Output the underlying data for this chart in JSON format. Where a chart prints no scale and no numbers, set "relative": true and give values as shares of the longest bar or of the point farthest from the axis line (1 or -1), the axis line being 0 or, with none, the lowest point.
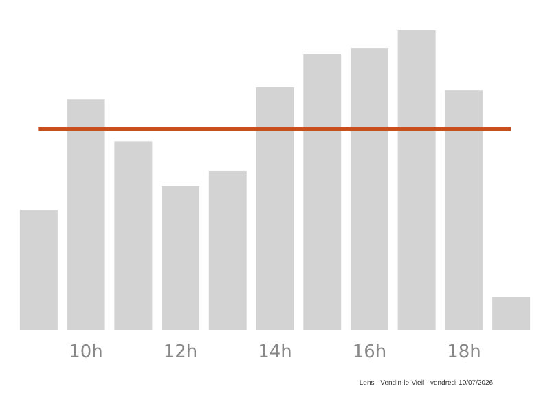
{
  "chart_data": {
    "type": "bar",
    "relative": true,
    "categories": [
      null,
      "10h",
      null,
      "12h",
      null,
      "14h",
      null,
      "16h",
      null,
      "18h",
      null
    ],
    "values": [
      0.4,
      0.77,
      0.63,
      0.48,
      0.53,
      0.81,
      0.92,
      0.94,
      1,
      0.8,
      0.11
    ],
    "color": "#d3d3d3",
    "ref_lines": [
      {
        "axis": "y",
        "value": 0.67,
        "color": "#c8501e"
      }
    ],
    "annotations": [
      "Lens - Vendin-le-Vieil - vendredi 10/07/2026"
    ]
  }
}
